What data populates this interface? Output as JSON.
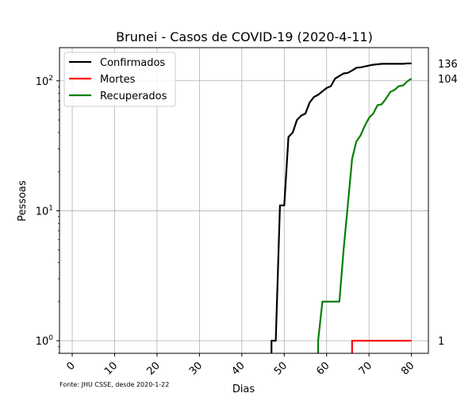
{
  "chart_data": {
    "type": "line",
    "title": "Brunei - Casos de COVID-19 (2020-4-11)",
    "xlabel": "Dias",
    "ylabel": "Pessoas",
    "y_scale": "log",
    "xlim": [
      -3,
      84
    ],
    "ylim": [
      0.8,
      180
    ],
    "x_ticks": [
      "0",
      "10",
      "20",
      "30",
      "40",
      "50",
      "60",
      "70",
      "80"
    ],
    "y_ticks": [
      {
        "base": "10",
        "exp": "0",
        "value": 1
      },
      {
        "base": "10",
        "exp": "1",
        "value": 10
      },
      {
        "base": "10",
        "exp": "2",
        "value": 100
      }
    ],
    "grid": true,
    "legend_position": "upper-left",
    "source_note": "Fonte: JHU CSSE, desde 2020-1-22",
    "end_labels": [
      {
        "text": "136",
        "value": 136
      },
      {
        "text": "104",
        "value": 104
      },
      {
        "text": "1",
        "value": 1
      }
    ],
    "series": [
      {
        "name": "Confirmados",
        "color": "#000000",
        "x": [
          47,
          47,
          48,
          49,
          50,
          51,
          52,
          53,
          54,
          55,
          56,
          57,
          58,
          59,
          60,
          61,
          62,
          63,
          64,
          65,
          66,
          67,
          68,
          69,
          70,
          71,
          72,
          73,
          74,
          75,
          76,
          77,
          78,
          79,
          80
        ],
        "y": [
          0.8,
          1,
          1,
          11,
          11,
          37,
          40,
          50,
          54,
          56,
          68,
          75,
          78,
          83,
          88,
          91,
          104,
          109,
          114,
          115,
          120,
          126,
          127,
          129,
          131,
          133,
          134,
          135,
          135,
          135,
          135,
          135,
          135,
          136,
          136
        ]
      },
      {
        "name": "Mortes",
        "color": "#ff0000",
        "x": [
          66,
          66,
          67,
          68,
          69,
          70,
          71,
          72,
          73,
          74,
          75,
          76,
          77,
          78,
          79,
          80
        ],
        "y": [
          0.8,
          1,
          1,
          1,
          1,
          1,
          1,
          1,
          1,
          1,
          1,
          1,
          1,
          1,
          1,
          1
        ]
      },
      {
        "name": "Recuperados",
        "color": "#008000",
        "x": [
          58,
          58,
          59,
          60,
          61,
          62,
          63,
          64,
          65,
          66,
          67,
          68,
          69,
          70,
          71,
          72,
          73,
          74,
          75,
          76,
          77,
          78,
          79,
          80
        ],
        "y": [
          0.8,
          1,
          2,
          2,
          2,
          2,
          2,
          5,
          11,
          25,
          34,
          38,
          45,
          52,
          56,
          65,
          66,
          73,
          82,
          85,
          91,
          92,
          99,
          104
        ]
      }
    ]
  }
}
